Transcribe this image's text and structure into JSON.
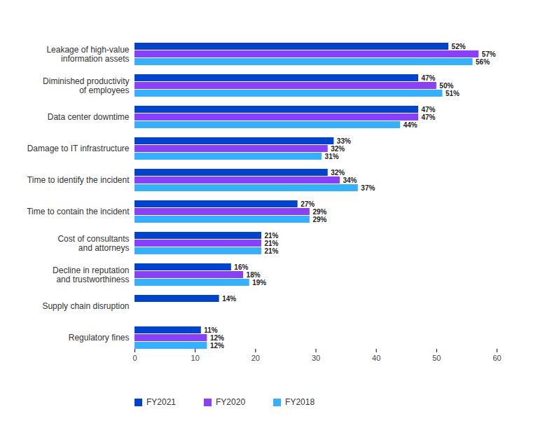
{
  "chart_data": {
    "type": "bar",
    "orientation": "horizontal",
    "data_labels": true,
    "grid": false,
    "legend": "bottom-left",
    "categories": [
      "Leakage of high-value\ninformation assets",
      "Diminished productivity\nof employees",
      "Data center downtime",
      "Damage to IT infrastructure",
      "Time to identify the incident",
      "Time to contain the incident",
      "Cost of consultants\nand attorneys",
      "Decline in reputation\nand trustworthiness",
      "Supply chain disruption",
      "Regulatory fines"
    ],
    "series": [
      {
        "name": "FY2021",
        "color": "#0043ce",
        "values": [
          52,
          47,
          47,
          33,
          32,
          27,
          21,
          16,
          14,
          11
        ],
        "value_labels": [
          "52%",
          "47%",
          "47%",
          "33%",
          "32%",
          "27%",
          "21%",
          "16%",
          "14%",
          "11%"
        ]
      },
      {
        "name": "FY2020",
        "color": "#8a3ffc",
        "values": [
          57,
          50,
          47,
          32,
          34,
          29,
          21,
          18,
          null,
          12
        ],
        "value_labels": [
          "57%",
          "50%",
          "47%",
          "32%",
          "34%",
          "29%",
          "21%",
          "18%",
          null,
          "12%"
        ]
      },
      {
        "name": "FY2018",
        "color": "#33b1ff",
        "values": [
          56,
          51,
          44,
          31,
          37,
          29,
          21,
          19,
          null,
          12
        ],
        "value_labels": [
          "56%",
          "51%",
          "44%",
          "31%",
          "37%",
          "29%",
          "21%",
          "19%",
          null,
          "12%"
        ]
      }
    ],
    "xlim": [
      0,
      60
    ],
    "xticks": [
      0,
      10,
      20,
      30,
      40,
      50,
      60
    ]
  }
}
